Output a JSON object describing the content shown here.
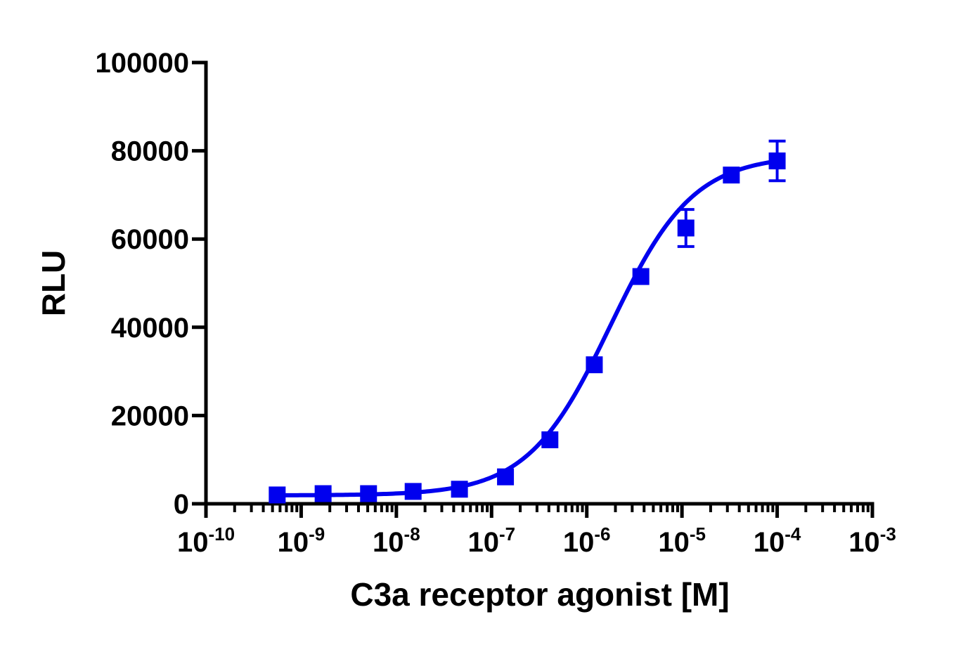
{
  "chart_data": {
    "type": "scatter",
    "title": "",
    "xlabel": "C3a receptor agonist [M]",
    "ylabel": "RLU",
    "x_scale": "log10",
    "xlim": [
      1e-10,
      0.001
    ],
    "ylim": [
      0,
      100000
    ],
    "x_ticks": [
      {
        "base": "10",
        "exp": "-10"
      },
      {
        "base": "10",
        "exp": "-9"
      },
      {
        "base": "10",
        "exp": "-8"
      },
      {
        "base": "10",
        "exp": "-7"
      },
      {
        "base": "10",
        "exp": "-6"
      },
      {
        "base": "10",
        "exp": "-5"
      },
      {
        "base": "10",
        "exp": "-4"
      },
      {
        "base": "10",
        "exp": "-3"
      }
    ],
    "y_ticks": [
      "0",
      "20000",
      "40000",
      "60000",
      "80000",
      "100000"
    ],
    "grid": false,
    "color": "#0000ee",
    "marker": "square",
    "series": [
      {
        "x": [
          5.6e-10,
          1.7e-09,
          5.1e-09,
          1.5e-08,
          4.6e-08,
          1.4e-07,
          4.1e-07,
          1.2e-06,
          3.7e-06,
          1.1e-05,
          3.3e-05,
          0.0001
        ],
        "y": [
          2000,
          2300,
          2300,
          2800,
          3300,
          6100,
          14500,
          31500,
          51500,
          62500,
          74500,
          77700
        ],
        "error": [
          300,
          300,
          300,
          300,
          300,
          400,
          800,
          800,
          1500,
          4200,
          800,
          4500
        ]
      }
    ],
    "fit": {
      "model": "four-parameter logistic",
      "bottom": 1900,
      "top": 79000,
      "log_ec50": -5.75,
      "hill_slope": 1.0,
      "x_range": [
        5.6e-10,
        0.0001
      ]
    }
  }
}
